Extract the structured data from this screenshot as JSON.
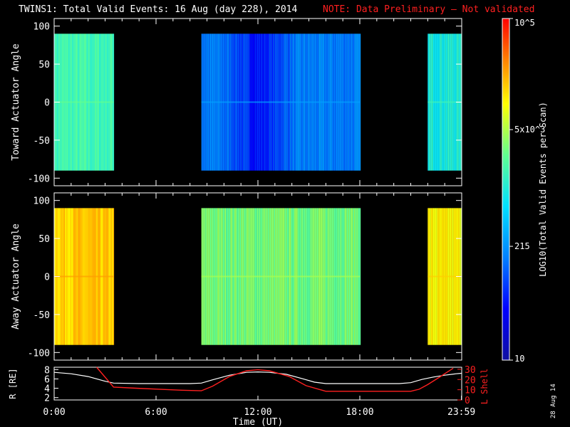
{
  "header": {
    "title": "TWINS1: Total Valid Events: 16 Aug (day 228), 2014",
    "note": "NOTE: Data Preliminary — Not validated",
    "stamp": "28 Aug 14"
  },
  "colors": {
    "background": "#000000",
    "text": "#ffffff",
    "note": "#ff2020",
    "lshell": "#ff2020",
    "r_line": "#ffffff"
  },
  "chart_data": [
    {
      "type": "heatmap",
      "ylabel": "Toward Actuator Angle",
      "ylim": [
        -110,
        110
      ],
      "yticks": [
        "100",
        "50",
        "0",
        "-50",
        "-100"
      ],
      "xlim": [
        0,
        1440
      ],
      "angle_range": [
        -90,
        90
      ],
      "blocks": [
        {
          "x": [
            0,
            210
          ],
          "level": 0.55
        },
        {
          "x": [
            520,
            1080
          ],
          "level": 0.3
        },
        {
          "x": [
            1320,
            1440
          ],
          "level": 0.5
        }
      ]
    },
    {
      "type": "heatmap",
      "ylabel": "Away Actuator Angle",
      "ylim": [
        -110,
        110
      ],
      "yticks": [
        "100",
        "50",
        "0",
        "-50",
        "-100"
      ],
      "xlim": [
        0,
        1440
      ],
      "angle_range": [
        -90,
        90
      ],
      "blocks": [
        {
          "x": [
            0,
            210
          ],
          "level": 0.8
        },
        {
          "x": [
            520,
            1080
          ],
          "level": 0.62
        },
        {
          "x": [
            1320,
            1440
          ],
          "level": 0.75
        }
      ]
    },
    {
      "type": "colorbar",
      "label": "LOG10(Total Valid Events per Scan)",
      "ticks": [
        {
          "label": "10",
          "value": 10
        },
        {
          "label": "215",
          "value": 215
        },
        {
          "label": "5x10^3",
          "value": 5000
        },
        {
          "label": "10^5",
          "value": 100000
        }
      ]
    },
    {
      "type": "line",
      "xlabel": "Time (UT)",
      "ylabel": "R [RE]",
      "y2label": "L Shell",
      "xticks": [
        "0:00",
        "6:00",
        "12:00",
        "18:00",
        "23:59"
      ],
      "xtick_minutes": [
        0,
        360,
        720,
        1080,
        1439
      ],
      "yticks": [
        "8",
        "6",
        "4",
        "2"
      ],
      "y2ticks": [
        "30",
        "20",
        "10",
        "0"
      ],
      "ylim": [
        1.5,
        8.5
      ],
      "y2lim": [
        0,
        32
      ],
      "series": [
        {
          "name": "R",
          "x": [
            0,
            60,
            120,
            180,
            210,
            300,
            360,
            420,
            480,
            520,
            560,
            620,
            680,
            720,
            760,
            820,
            880,
            920,
            960,
            1000,
            1060,
            1120,
            1180,
            1220,
            1260,
            1300,
            1340,
            1380,
            1420,
            1439
          ],
          "y": [
            7.4,
            7.1,
            6.5,
            5.5,
            5.1,
            5.0,
            5.0,
            5.0,
            5.0,
            5.1,
            5.8,
            6.8,
            7.4,
            7.5,
            7.4,
            7.0,
            6.0,
            5.3,
            5.0,
            5.0,
            5.0,
            5.0,
            5.0,
            5.0,
            5.2,
            5.9,
            6.4,
            6.8,
            7.1,
            7.2
          ]
        },
        {
          "name": "L Shell",
          "x": [
            150,
            210,
            290,
            370,
            450,
            520,
            560,
            620,
            680,
            720,
            760,
            830,
            890,
            960,
            1040,
            1120,
            1200,
            1260,
            1290,
            1320,
            1360,
            1410
          ],
          "y": [
            32,
            12.5,
            11.5,
            10.5,
            9.5,
            9.0,
            13.5,
            23,
            28.5,
            29.5,
            28.5,
            23,
            14,
            8.5,
            8.5,
            8.5,
            8.5,
            8.5,
            10.5,
            15,
            22,
            31
          ]
        }
      ]
    }
  ]
}
